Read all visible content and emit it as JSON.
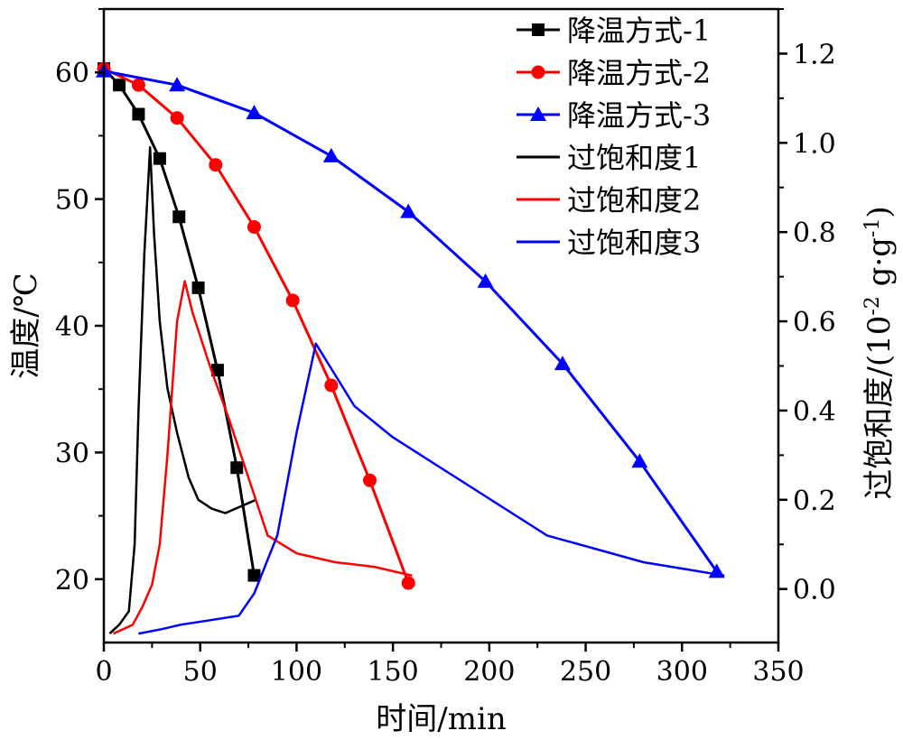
{
  "chart_data": {
    "type": "line",
    "xlabel": "时间/min",
    "ylabel": "温度/℃",
    "y2label": "过饱和度/(10-2 g·g-1)",
    "xlim": [
      0,
      350
    ],
    "ylim": [
      15,
      65
    ],
    "y2lim": [
      -0.12,
      1.3
    ],
    "x_ticks": [
      0,
      50,
      100,
      150,
      200,
      250,
      300,
      350
    ],
    "y_ticks": [
      20,
      30,
      40,
      50,
      60
    ],
    "y2_ticks": [
      0.0,
      0.2,
      0.4,
      0.6,
      0.8,
      1.0,
      1.2
    ],
    "legend_position": "top-right",
    "series": [
      {
        "name": "降温方式-1",
        "axis": "left",
        "color": "#000000",
        "marker": "square",
        "x": [
          0,
          8,
          18,
          29,
          39,
          49,
          59,
          69,
          78
        ],
        "y": [
          60.3,
          59.0,
          56.7,
          53.2,
          48.6,
          43.0,
          36.5,
          28.8,
          20.3
        ]
      },
      {
        "name": "降温方式-2",
        "axis": "left",
        "color": "#ff0000",
        "marker": "circle",
        "x": [
          0,
          18,
          38,
          58,
          78,
          98,
          118,
          138,
          158
        ],
        "y": [
          60.3,
          59.0,
          56.4,
          52.7,
          47.8,
          42.0,
          35.3,
          27.8,
          19.7
        ]
      },
      {
        "name": "降温方式-3",
        "axis": "left",
        "color": "#0000ff",
        "marker": "triangle",
        "x": [
          0,
          38,
          78,
          118,
          158,
          198,
          238,
          278,
          318
        ],
        "y": [
          60.1,
          59.0,
          56.8,
          53.4,
          49.0,
          43.5,
          37.0,
          29.3,
          20.6
        ]
      },
      {
        "name": "过饱和度1",
        "axis": "right",
        "color": "#000000",
        "marker": "none",
        "x": [
          3,
          8,
          13,
          16,
          18,
          21,
          24,
          26,
          29,
          33,
          38,
          44,
          49,
          56,
          63,
          79
        ],
        "y": [
          -0.1,
          -0.08,
          -0.05,
          0.1,
          0.4,
          0.75,
          0.99,
          0.8,
          0.6,
          0.45,
          0.35,
          0.25,
          0.2,
          0.18,
          0.17,
          0.2
        ]
      },
      {
        "name": "过饱和度2",
        "axis": "right",
        "color": "#ff0000",
        "marker": "none",
        "x": [
          5,
          10,
          15,
          20,
          25,
          29,
          33,
          38,
          42,
          46,
          55,
          65,
          75,
          85,
          100,
          120,
          140,
          160
        ],
        "y": [
          -0.1,
          -0.09,
          -0.08,
          -0.04,
          0.01,
          0.1,
          0.3,
          0.6,
          0.69,
          0.62,
          0.5,
          0.38,
          0.25,
          0.12,
          0.08,
          0.06,
          0.05,
          0.03
        ]
      },
      {
        "name": "过饱和度3",
        "axis": "right",
        "color": "#0000ff",
        "marker": "none",
        "x": [
          18,
          30,
          40,
          55,
          70,
          78,
          90,
          100,
          110,
          120,
          130,
          150,
          190,
          230,
          280,
          322
        ],
        "y": [
          -0.1,
          -0.09,
          -0.08,
          -0.07,
          -0.06,
          -0.01,
          0.12,
          0.35,
          0.55,
          0.48,
          0.41,
          0.34,
          0.23,
          0.12,
          0.06,
          0.03
        ]
      }
    ]
  }
}
